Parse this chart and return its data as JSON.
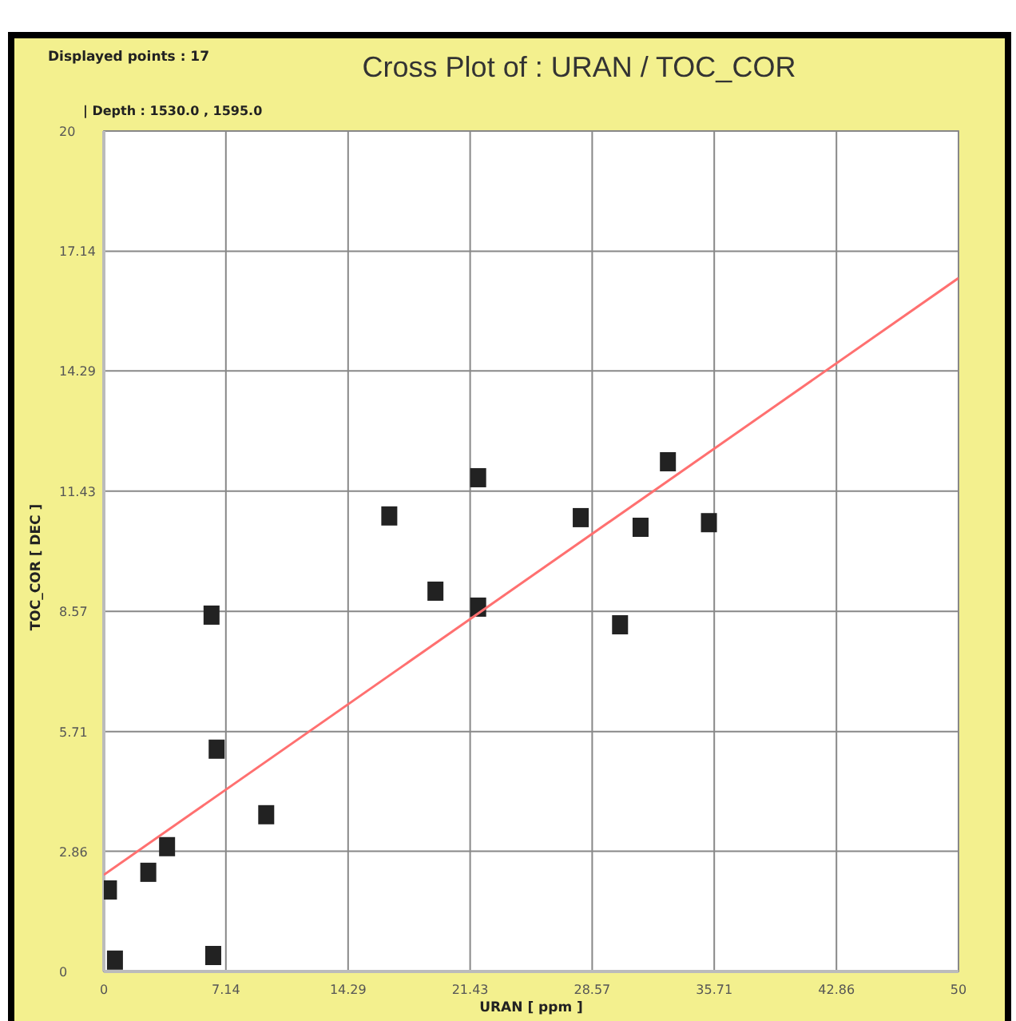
{
  "chart_data": {
    "type": "scatter",
    "title": "Cross Plot of : URAN / TOC_COR",
    "subtitle": "| Depth : 1530.0 , 1595.0",
    "xlabel": "URAN [ ppm ]",
    "ylabel": "TOC_COR [ DEC ]",
    "annotations": [
      "Displayed points : 17"
    ],
    "xlim": [
      0,
      50
    ],
    "ylim": [
      0,
      20
    ],
    "xticks": [
      0,
      7.14,
      14.29,
      21.43,
      28.57,
      35.71,
      42.86,
      50
    ],
    "yticks": [
      0,
      2.86,
      5.71,
      8.57,
      11.43,
      14.29,
      17.14,
      20
    ],
    "grid": true,
    "marker": "square",
    "series": [
      {
        "color": "#222222",
        "x": [
          0.3,
          0.65,
          2.6,
          3.7,
          6.3,
          6.6,
          6.4,
          9.5,
          16.7,
          19.4,
          21.9,
          21.9,
          27.9,
          30.2,
          31.4,
          33.0,
          35.4
        ],
        "values": [
          1.94,
          0.27,
          2.36,
          2.97,
          8.48,
          5.29,
          0.38,
          3.73,
          10.84,
          9.05,
          11.75,
          8.67,
          10.8,
          8.25,
          10.57,
          12.13,
          10.68
        ]
      },
      {
        "type": "line",
        "color": "#ff7070",
        "marker": "none",
        "x": [
          0,
          50
        ],
        "values": [
          2.3,
          16.5
        ]
      }
    ]
  }
}
